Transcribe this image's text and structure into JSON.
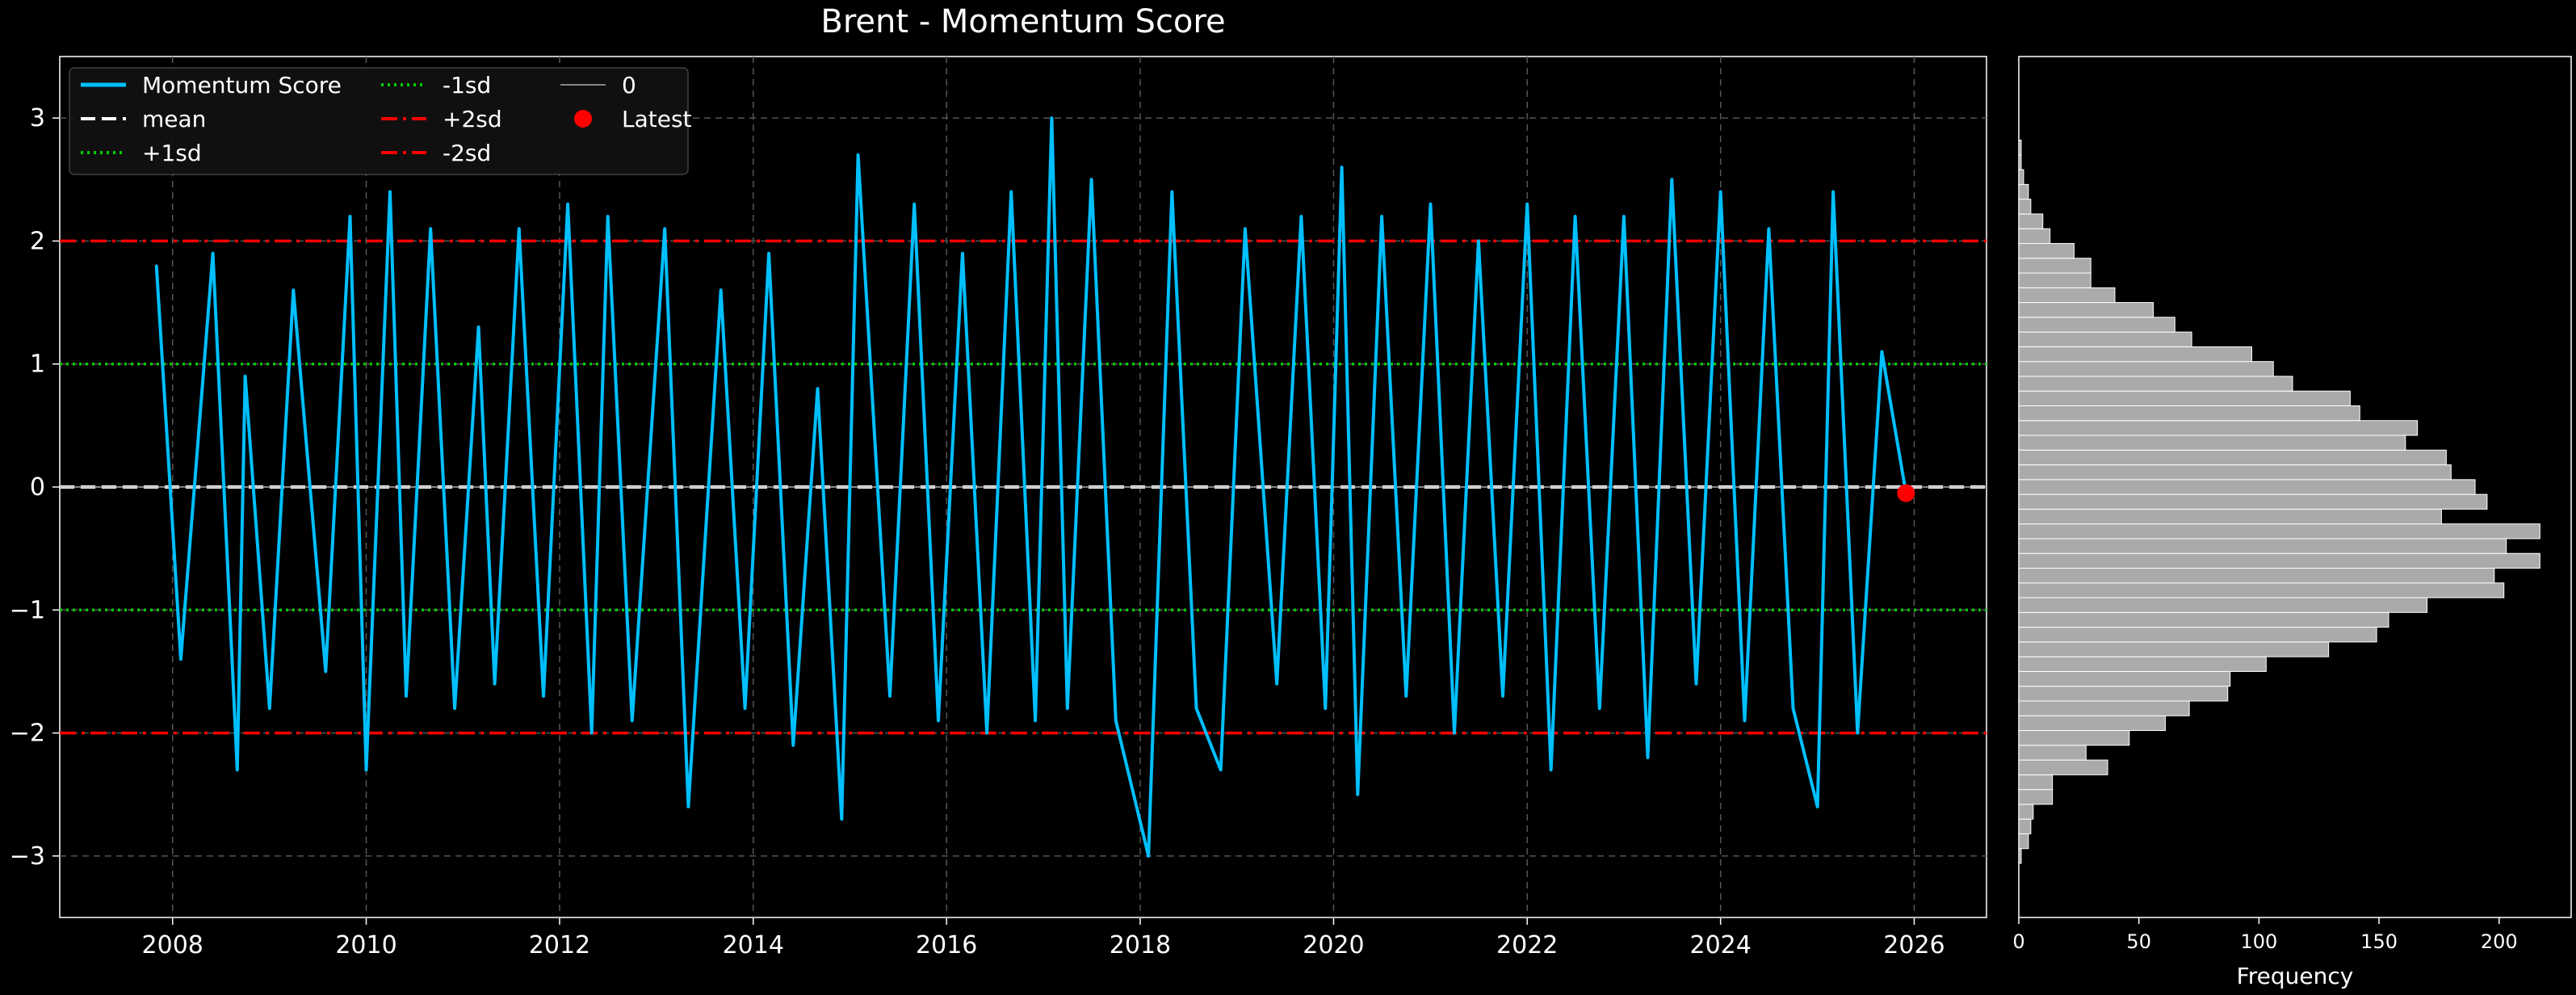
{
  "chart_data": [
    {
      "type": "line",
      "title": "Brent - Momentum Score",
      "xlabel": "",
      "ylabel": "",
      "x_range": [
        "2006-11-01",
        "2026-10-01"
      ],
      "ylim": [
        -3.5,
        3.5
      ],
      "x_ticks": [
        "2008",
        "2010",
        "2012",
        "2014",
        "2016",
        "2018",
        "2020",
        "2022",
        "2024",
        "2026"
      ],
      "y_ticks": [
        -3,
        -2,
        -1,
        0,
        1,
        2,
        3
      ],
      "y_tick_labels": [
        "−3",
        "−2",
        "−1",
        "0",
        "1",
        "2",
        "3"
      ],
      "grid": true,
      "legend_position": "top-left",
      "series": [
        {
          "name": "Momentum Score",
          "color": "#00bfff",
          "style": "solid",
          "x": [
            "2007-11-01",
            "2008-02-01",
            "2008-06-01",
            "2008-09-01",
            "2008-10-01",
            "2009-01-01",
            "2009-04-01",
            "2009-08-01",
            "2009-11-01",
            "2010-01-01",
            "2010-04-01",
            "2010-06-01",
            "2010-09-01",
            "2010-12-01",
            "2011-03-01",
            "2011-05-01",
            "2011-08-01",
            "2011-11-01",
            "2012-02-01",
            "2012-05-01",
            "2012-07-01",
            "2012-10-01",
            "2013-02-01",
            "2013-05-01",
            "2013-09-01",
            "2013-12-01",
            "2014-03-01",
            "2014-06-01",
            "2014-09-01",
            "2014-12-01",
            "2015-02-01",
            "2015-06-01",
            "2015-09-01",
            "2015-12-01",
            "2016-03-01",
            "2016-06-01",
            "2016-09-01",
            "2016-12-01",
            "2017-02-01",
            "2017-04-01",
            "2017-07-01",
            "2017-10-01",
            "2018-02-01",
            "2018-05-01",
            "2018-08-01",
            "2018-11-01",
            "2019-02-01",
            "2019-06-01",
            "2019-09-01",
            "2019-12-01",
            "2020-02-01",
            "2020-04-01",
            "2020-07-01",
            "2020-10-01",
            "2021-01-01",
            "2021-04-01",
            "2021-07-01",
            "2021-10-01",
            "2022-01-01",
            "2022-04-01",
            "2022-07-01",
            "2022-10-01",
            "2023-01-01",
            "2023-04-01",
            "2023-07-01",
            "2023-10-01",
            "2024-01-01",
            "2024-04-01",
            "2024-07-01",
            "2024-10-01",
            "2025-01-01",
            "2025-03-01",
            "2025-06-01",
            "2025-09-01",
            "2025-12-01"
          ],
          "values": [
            1.8,
            -1.4,
            1.9,
            -2.3,
            0.9,
            -1.8,
            1.6,
            -1.5,
            2.2,
            -2.3,
            2.4,
            -1.7,
            2.1,
            -1.8,
            1.3,
            -1.6,
            2.1,
            -1.7,
            2.3,
            -2.0,
            2.2,
            -1.9,
            2.1,
            -2.6,
            1.6,
            -1.8,
            1.9,
            -2.1,
            0.8,
            -2.7,
            2.7,
            -1.7,
            2.3,
            -1.9,
            1.9,
            -2.0,
            2.4,
            -1.9,
            3.0,
            -1.8,
            2.5,
            -1.9,
            -3.0,
            2.4,
            -1.8,
            -2.3,
            2.1,
            -1.6,
            2.2,
            -1.8,
            2.6,
            -2.5,
            2.2,
            -1.7,
            2.3,
            -2.0,
            2.0,
            -1.7,
            2.3,
            -2.3,
            2.2,
            -1.8,
            2.2,
            -2.2,
            2.5,
            -1.6,
            2.4,
            -1.9,
            2.1,
            -1.8,
            -2.6,
            2.4,
            -2.0,
            1.1,
            -0.05
          ]
        },
        {
          "name": "mean",
          "color": "#ffffff",
          "style": "dashed",
          "y": 0.0
        },
        {
          "name": "+1sd",
          "color": "#00cc00",
          "style": "dotted",
          "y": 1.0
        },
        {
          "name": "-1sd",
          "color": "#00cc00",
          "style": "dotted",
          "y": -1.0
        },
        {
          "name": "+2sd",
          "color": "#ff0000",
          "style": "dashdot",
          "y": 2.0
        },
        {
          "name": "-2sd",
          "color": "#ff0000",
          "style": "dashdot",
          "y": -2.0
        },
        {
          "name": "0",
          "color": "#aaaaaa",
          "style": "solid-thin",
          "y": 0.0
        },
        {
          "name": "Latest",
          "color": "#ff0000",
          "style": "marker",
          "x": "2025-12-01",
          "y": -0.05
        }
      ],
      "legend": {
        "entries": [
          "Momentum Score",
          "mean",
          "+1sd",
          "-1sd",
          "+2sd",
          "-2sd",
          "0",
          "Latest"
        ]
      }
    },
    {
      "type": "bar",
      "orientation": "horizontal",
      "title": "",
      "xlabel": "Frequency",
      "ylabel": "",
      "xlim": [
        0,
        230
      ],
      "ylim": [
        -3.5,
        3.5
      ],
      "x_ticks": [
        0,
        50,
        100,
        150,
        200
      ],
      "color": "#aaaaaa",
      "bin_width": 0.12,
      "bins_center": [
        -3.0,
        -2.88,
        -2.76,
        -2.64,
        -2.52,
        -2.4,
        -2.28,
        -2.16,
        -2.04,
        -1.92,
        -1.8,
        -1.68,
        -1.56,
        -1.44,
        -1.32,
        -1.2,
        -1.08,
        -0.96,
        -0.84,
        -0.72,
        -0.6,
        -0.48,
        -0.36,
        -0.24,
        -0.12,
        0.0,
        0.12,
        0.24,
        0.36,
        0.48,
        0.6,
        0.72,
        0.84,
        0.96,
        1.08,
        1.2,
        1.32,
        1.44,
        1.56,
        1.68,
        1.8,
        1.92,
        2.04,
        2.16,
        2.28,
        2.4,
        2.52,
        2.64,
        2.76,
        2.88,
        3.0
      ],
      "values": [
        1,
        4,
        5,
        6,
        14,
        14,
        37,
        28,
        46,
        61,
        71,
        87,
        88,
        103,
        129,
        149,
        154,
        170,
        202,
        198,
        217,
        203,
        217,
        176,
        195,
        190,
        180,
        178,
        161,
        166,
        142,
        138,
        114,
        106,
        97,
        72,
        65,
        56,
        40,
        30,
        30,
        23,
        13,
        10,
        5,
        4,
        2,
        1,
        1,
        0,
        0
      ]
    }
  ]
}
